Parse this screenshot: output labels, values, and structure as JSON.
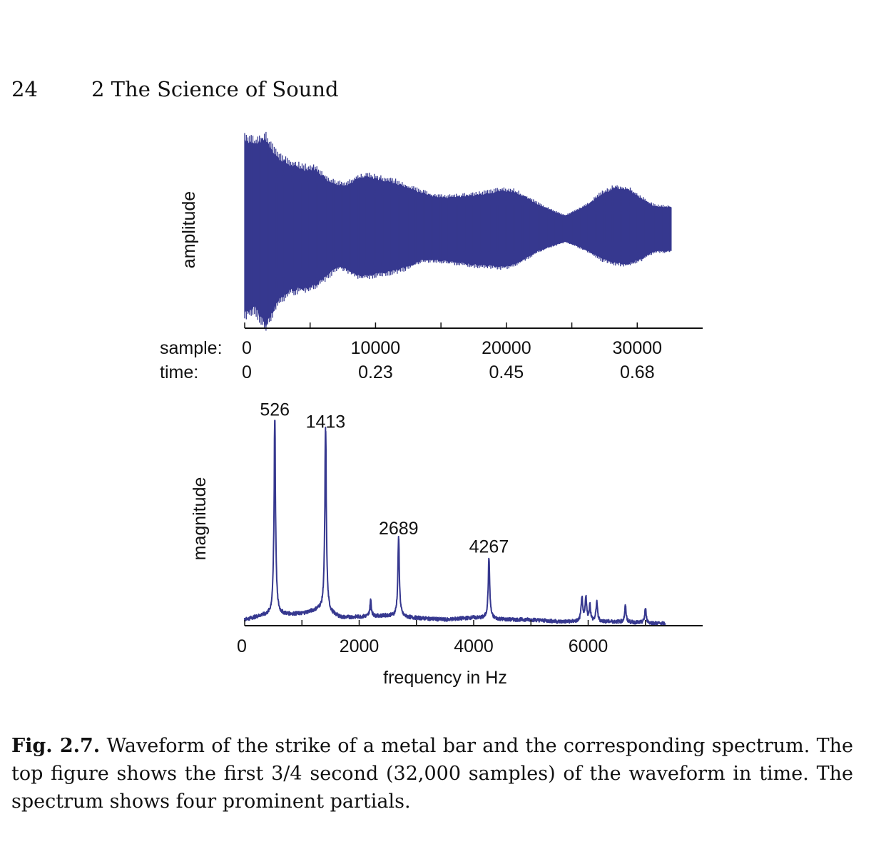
{
  "header": {
    "page_number": "24",
    "chapter_title": "2 The Science of Sound"
  },
  "caption": {
    "label": "Fig. 2.7.",
    "text": "Waveform of the strike of a metal bar and the corresponding spectrum. The top figure shows the first 3/4 second (32,000 samples) of the waveform in time. The spectrum shows four prominent partials."
  },
  "colors": {
    "trace": "#36388f",
    "axis": "#111111"
  },
  "chart_data": [
    {
      "type": "line",
      "ylabel": "amplitude",
      "x_rows": [
        {
          "label": "sample:",
          "ticks": [
            "0",
            "10000",
            "20000",
            "30000"
          ]
        },
        {
          "label": "time:",
          "ticks": [
            "0",
            "0.23",
            "0.45",
            "0.68"
          ]
        }
      ],
      "xlim": [
        0,
        35000
      ],
      "tick_values": [
        0,
        5000,
        10000,
        15000,
        20000,
        25000,
        30000
      ],
      "labeled_ticks": [
        0,
        10000,
        20000,
        30000
      ],
      "data_end": 32600,
      "envelope": {
        "x": [
          0,
          800,
          1600,
          2500,
          3500,
          4600,
          5400,
          6500,
          7200,
          8000,
          8600,
          9300,
          10200,
          11500,
          12500,
          13500,
          14500,
          15300,
          16300,
          17500,
          18700,
          19700,
          20600,
          21600,
          22400,
          23400,
          24500,
          25300,
          26300,
          27300,
          28300,
          29300,
          30300,
          31300,
          32500
        ],
        "upper": [
          0.93,
          0.88,
          0.93,
          0.74,
          0.66,
          0.62,
          0.62,
          0.49,
          0.46,
          0.47,
          0.52,
          0.54,
          0.52,
          0.48,
          0.43,
          0.38,
          0.34,
          0.33,
          0.34,
          0.35,
          0.38,
          0.4,
          0.39,
          0.32,
          0.26,
          0.2,
          0.14,
          0.19,
          0.26,
          0.37,
          0.43,
          0.41,
          0.32,
          0.24,
          0.23
        ],
        "lower": [
          -0.85,
          -0.8,
          -0.98,
          -0.74,
          -0.62,
          -0.6,
          -0.57,
          -0.45,
          -0.37,
          -0.42,
          -0.46,
          -0.47,
          -0.45,
          -0.42,
          -0.38,
          -0.31,
          -0.31,
          -0.32,
          -0.34,
          -0.36,
          -0.37,
          -0.38,
          -0.36,
          -0.28,
          -0.22,
          -0.17,
          -0.12,
          -0.16,
          -0.22,
          -0.3,
          -0.34,
          -0.35,
          -0.3,
          -0.22,
          -0.22
        ]
      }
    },
    {
      "type": "line",
      "ylabel": "magnitude",
      "xlabel": "frequency in Hz",
      "xlim": [
        0,
        8000
      ],
      "x_ticks": [
        0,
        2000,
        4000,
        6000
      ],
      "x_tick_labels": [
        "0",
        "2000",
        "4000",
        "6000"
      ],
      "minor_ticks": [
        1000,
        3000,
        5000,
        7000
      ],
      "data_end": 7350,
      "ylim": [
        0,
        1
      ],
      "peaks": [
        {
          "x": 526,
          "y": 0.98,
          "label": "526"
        },
        {
          "x": 1413,
          "y": 0.92,
          "label": "1413"
        },
        {
          "x": 2689,
          "y": 0.39,
          "label": "2689"
        },
        {
          "x": 4267,
          "y": 0.3,
          "label": "4267"
        },
        {
          "x": 2200,
          "y": 0.08
        },
        {
          "x": 5890,
          "y": 0.12
        },
        {
          "x": 5960,
          "y": 0.12
        },
        {
          "x": 6030,
          "y": 0.08
        },
        {
          "x": 6150,
          "y": 0.1
        },
        {
          "x": 6650,
          "y": 0.08
        },
        {
          "x": 7000,
          "y": 0.07
        }
      ],
      "baseline": {
        "x": [
          0,
          300,
          1000,
          1300,
          1700,
          2500,
          2900,
          3500,
          4000,
          4600,
          5000,
          5500,
          6400,
          7350
        ],
        "y": [
          0.03,
          0.05,
          0.06,
          0.08,
          0.04,
          0.05,
          0.04,
          0.03,
          0.04,
          0.03,
          0.03,
          0.02,
          0.02,
          0.01
        ]
      }
    }
  ]
}
